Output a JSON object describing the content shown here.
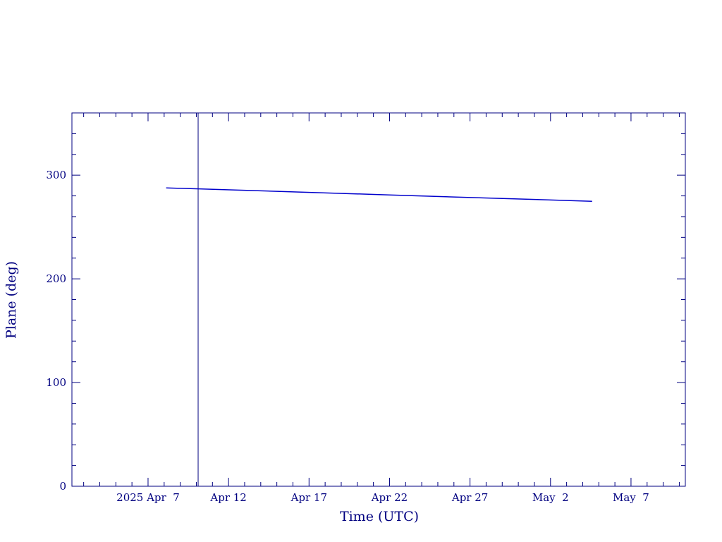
{
  "chart_data": {
    "type": "line",
    "xlabel": "Time (UTC)",
    "ylabel": "Plane (deg)",
    "x": [
      "2025-04-08T03:00",
      "2025-04-15T00:00",
      "2025-04-22T00:00",
      "2025-04-29T00:00",
      "2025-05-04T14:00"
    ],
    "series": [
      {
        "color": "#0000cc",
        "values": [
          287.7,
          284.4,
          280.9,
          277.5,
          274.8
        ]
      }
    ],
    "vline": "2025-04-10T02:40",
    "vline_color": "#000080",
    "xlim": [
      "2025-04-02T06:30",
      "2025-05-10T09:00"
    ],
    "xticks": [
      {
        "value": "2025-04-07",
        "label": "2025 Apr  7"
      },
      {
        "value": "2025-04-12",
        "label": "Apr 12"
      },
      {
        "value": "2025-04-17",
        "label": "Apr 17"
      },
      {
        "value": "2025-04-22",
        "label": "Apr 22"
      },
      {
        "value": "2025-04-27",
        "label": "Apr 27"
      },
      {
        "value": "2025-05-02",
        "label": "May  2"
      },
      {
        "value": "2025-05-07",
        "label": "May  7"
      }
    ],
    "xminorticks": [
      "2025-04-03",
      "2025-04-04",
      "2025-04-05",
      "2025-04-06",
      "2025-04-08",
      "2025-04-09",
      "2025-04-10",
      "2025-04-11",
      "2025-04-13",
      "2025-04-14",
      "2025-04-15",
      "2025-04-16",
      "2025-04-18",
      "2025-04-19",
      "2025-04-20",
      "2025-04-21",
      "2025-04-23",
      "2025-04-24",
      "2025-04-25",
      "2025-04-26",
      "2025-04-28",
      "2025-04-29",
      "2025-04-30",
      "2025-05-01",
      "2025-05-03",
      "2025-05-04",
      "2025-05-05",
      "2025-05-06",
      "2025-05-08",
      "2025-05-09",
      "2025-05-10"
    ],
    "ylim": [
      0,
      360
    ],
    "yticks": [
      0,
      100,
      200,
      300
    ],
    "yminorticks": [
      20,
      40,
      60,
      80,
      120,
      140,
      160,
      180,
      220,
      240,
      260,
      280,
      320,
      340
    ],
    "axis_color": "#000080"
  }
}
